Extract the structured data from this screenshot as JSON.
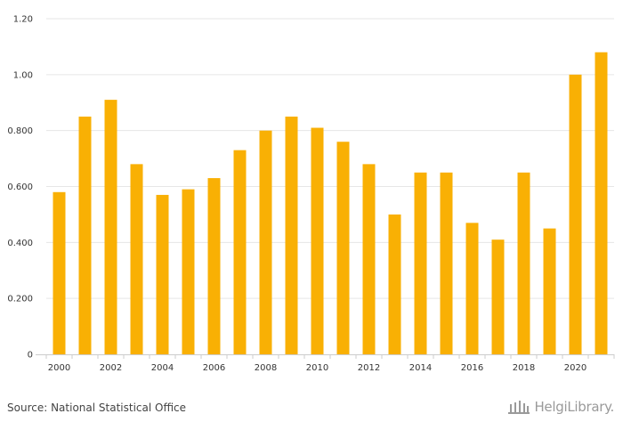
{
  "chart_data": {
    "type": "bar",
    "categories": [
      "2000",
      "2001",
      "2002",
      "2003",
      "2004",
      "2005",
      "2006",
      "2007",
      "2008",
      "2009",
      "2010",
      "2011",
      "2012",
      "2013",
      "2014",
      "2015",
      "2016",
      "2017",
      "2018",
      "2019",
      "2020",
      "2021"
    ],
    "x_tick_labels": [
      "2000",
      "2002",
      "2004",
      "2006",
      "2008",
      "2010",
      "2012",
      "2014",
      "2016",
      "2018",
      "2020"
    ],
    "values": [
      0.58,
      0.85,
      0.91,
      0.68,
      0.57,
      0.59,
      0.63,
      0.73,
      0.8,
      0.85,
      0.81,
      0.76,
      0.68,
      0.5,
      0.65,
      0.65,
      0.47,
      0.41,
      0.65,
      0.45,
      1.0,
      1.08
    ],
    "y_ticks": [
      0,
      0.2,
      0.4,
      0.6,
      0.8,
      1.0,
      1.2
    ],
    "y_tick_labels": [
      "0",
      "0.200",
      "0.400",
      "0.600",
      "0.800",
      "1.00",
      "1.20"
    ],
    "ylim": [
      0,
      1.2
    ],
    "title": "",
    "xlabel": "",
    "ylabel": "",
    "grid": true,
    "colors": {
      "bar": "#F9B004",
      "grid": "#e6e6e6",
      "axis": "#cccccc"
    }
  },
  "footer": {
    "source": "Source: National Statistical Office",
    "logo_text": "HelgiLibrary."
  }
}
